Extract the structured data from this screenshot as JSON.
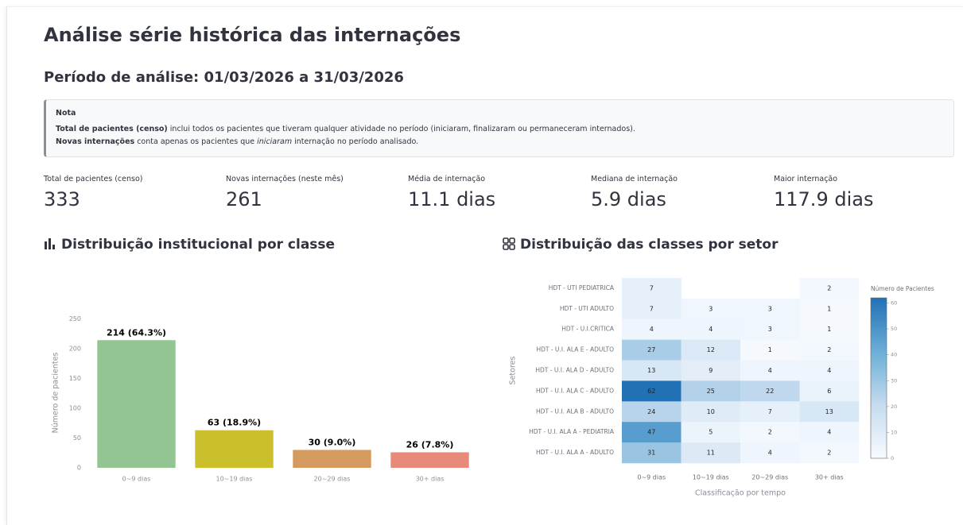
{
  "title": "Análise série histórica das internações",
  "period": "Período de análise: 01/03/2026 a 31/03/2026",
  "note": {
    "title": "Nota",
    "line1": {
      "bold": "Total de pacientes (censo)",
      "text": " inclui todos os pacientes que tiveram qualquer atividade no período (iniciaram, finalizaram ou permaneceram internados)."
    },
    "line2": {
      "bold": "Novas internações",
      "text1": " conta apenas os pacientes que ",
      "italic": "iniciaram",
      "text2": " internação no período analisado."
    }
  },
  "metrics": [
    {
      "label": "Total de pacientes (censo)",
      "value": "333"
    },
    {
      "label": "Novas internações (neste mês)",
      "value": "261"
    },
    {
      "label": "Média de internação",
      "value": "11.1 dias"
    },
    {
      "label": "Mediana de internação",
      "value": "5.9 dias"
    },
    {
      "label": "Maior internação",
      "value": "117.9 dias"
    }
  ],
  "chart_data": [
    {
      "type": "bar",
      "title": "Distribuição institucional por classe",
      "categories": [
        "0~9 dias",
        "10~19 dias",
        "20~29 dias",
        "30+ dias"
      ],
      "values": [
        214,
        63,
        30,
        26
      ],
      "value_labels": [
        "214 (64.3%)",
        "63 (18.9%)",
        "30 (9.0%)",
        "26 (7.8%)"
      ],
      "colors": [
        "#93c593",
        "#cbbf2d",
        "#d49a5e",
        "#e88a7a"
      ],
      "ylabel": "Número de pacientes",
      "ylim": [
        0,
        265
      ],
      "yticks": [
        0,
        50,
        100,
        150,
        200,
        250
      ]
    },
    {
      "type": "heatmap",
      "title": "Distribuição das classes por setor",
      "x": [
        "0~9 dias",
        "10~19 dias",
        "20~29 dias",
        "30+ dias"
      ],
      "y": [
        "HDT - UTI PEDIATRICA",
        "HDT - UTI ADULTO",
        "HDT - U.I.CRITICA",
        "HDT - U.I. ALA E - ADULTO",
        "HDT - U.I. ALA D - ADULTO",
        "HDT - U.I. ALA C - ADULTO",
        "HDT - U.I. ALA B - ADULTO",
        "HDT - U.I. ALA A - PEDIATRIA",
        "HDT - U.I. ALA A - ADULTO"
      ],
      "values": [
        [
          7,
          null,
          null,
          2
        ],
        [
          7,
          3,
          3,
          1
        ],
        [
          4,
          4,
          3,
          1
        ],
        [
          27,
          12,
          1,
          2
        ],
        [
          13,
          9,
          4,
          4
        ],
        [
          62,
          25,
          22,
          6
        ],
        [
          24,
          10,
          7,
          13
        ],
        [
          47,
          5,
          2,
          4
        ],
        [
          31,
          11,
          4,
          2
        ]
      ],
      "xlabel": "Classificação por tempo",
      "ylabel": "Setores",
      "colorbar": {
        "title": "Número de Pacientes",
        "zlim": [
          0,
          62
        ],
        "ticks": [
          0,
          10,
          20,
          30,
          40,
          50,
          60
        ],
        "colorscale": [
          "#f7fbff",
          "#c6dbef",
          "#6baed6",
          "#2171b5"
        ]
      }
    }
  ]
}
